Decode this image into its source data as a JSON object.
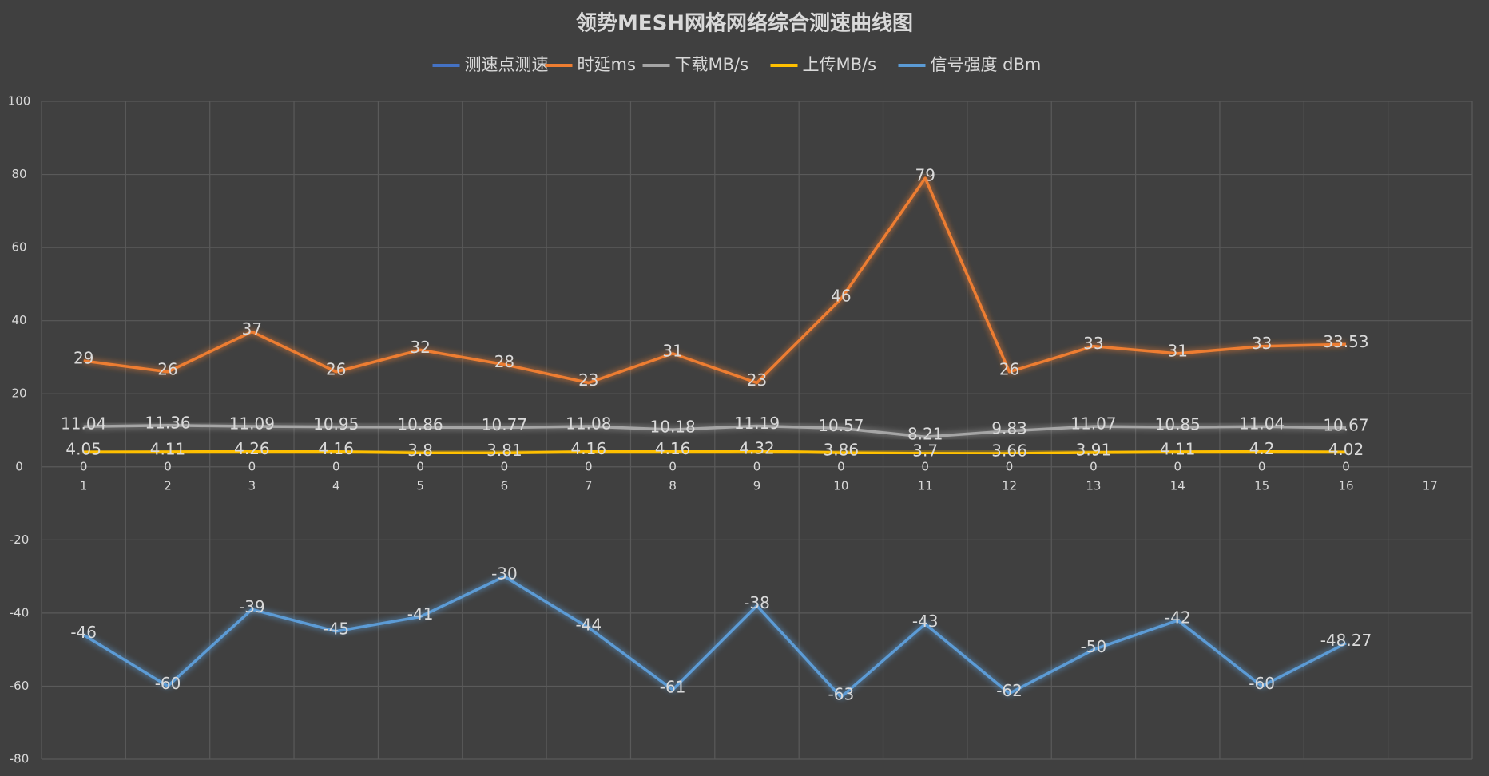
{
  "chart_data": {
    "type": "line",
    "title": "领势MESH网格网络综合测速曲线图",
    "categories": [
      "1",
      "2",
      "3",
      "4",
      "5",
      "6",
      "7",
      "8",
      "9",
      "10",
      "11",
      "12",
      "13",
      "14",
      "15",
      "16",
      "17"
    ],
    "series": [
      {
        "name": "测速点测速",
        "color": "#4472c4",
        "values": [
          0,
          0,
          0,
          0,
          0,
          0,
          0,
          0,
          0,
          0,
          0,
          0,
          0,
          0,
          0,
          0,
          null
        ]
      },
      {
        "name": "时延ms",
        "color": "#ed7d31",
        "values": [
          29,
          26,
          37,
          26,
          32,
          28,
          23,
          31,
          23,
          46,
          79,
          26,
          33,
          31,
          33,
          33.53,
          null
        ]
      },
      {
        "name": "下载MB/s",
        "color": "#a5a5a5",
        "values": [
          11.04,
          11.36,
          11.09,
          10.95,
          10.86,
          10.77,
          11.08,
          10.18,
          11.19,
          10.57,
          8.21,
          9.83,
          11.07,
          10.85,
          11.04,
          10.67,
          null
        ]
      },
      {
        "name": "上传MB/s",
        "color": "#ffc000",
        "values": [
          4.05,
          4.11,
          4.26,
          4.16,
          3.8,
          3.81,
          4.16,
          4.16,
          4.32,
          3.86,
          3.7,
          3.66,
          3.91,
          4.11,
          4.2,
          4.02,
          null
        ]
      },
      {
        "name": "信号强度 dBm",
        "color": "#5b9bd5",
        "values": [
          -46,
          -60,
          -39,
          -45,
          -41,
          -30,
          -44,
          -61,
          -38,
          -63,
          -43,
          -62,
          -50,
          -42,
          -60,
          -48.27,
          null
        ]
      }
    ],
    "ylim": [
      -80,
      100
    ],
    "yticks": [
      -80,
      -60,
      -40,
      -20,
      0,
      20,
      40,
      60,
      80,
      100
    ],
    "grid": true,
    "legend": "top"
  }
}
